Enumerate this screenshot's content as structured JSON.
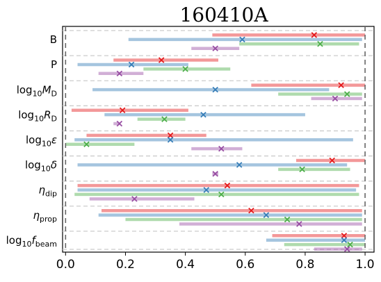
{
  "chart_data": {
    "type": "interval",
    "title": "160410A",
    "xlabel": "",
    "ylabel": "",
    "xlim": [
      -0.01,
      1.03
    ],
    "xticks": [
      "0.0",
      "0.2",
      "0.4",
      "0.6",
      "0.8",
      "1.0"
    ],
    "xtick_values": [
      0,
      0.2,
      0.4,
      0.6,
      0.8,
      1.0
    ],
    "reference_lines": [
      0,
      1
    ],
    "grid": false,
    "row_separators": "dashed light gray",
    "legend": "none",
    "colors": {
      "red": "#e41a1c",
      "blue": "#377eb8",
      "green": "#4daf4a",
      "purple": "#984ea3",
      "frame_dash": "#666666",
      "separator": "#cccccc"
    },
    "parameters": [
      {
        "label": "B",
        "rows": [
          {
            "color": "red",
            "lo": 0.49,
            "hi": 1.0,
            "best": 0.83
          },
          {
            "color": "blue",
            "lo": 0.21,
            "hi": 0.99,
            "best": 0.59
          },
          {
            "color": "green",
            "lo": 0.58,
            "hi": 0.98,
            "best": 0.85
          },
          {
            "color": "purple",
            "lo": 0.42,
            "hi": 0.58,
            "best": 0.5
          }
        ]
      },
      {
        "label": "P",
        "rows": [
          {
            "color": "red",
            "lo": 0.16,
            "hi": 0.51,
            "best": 0.32
          },
          {
            "color": "blue",
            "lo": 0.04,
            "hi": 0.41,
            "best": 0.22
          },
          {
            "color": "green",
            "lo": 0.26,
            "hi": 0.55,
            "best": 0.4
          },
          {
            "color": "purple",
            "lo": 0.11,
            "hi": 0.26,
            "best": 0.18
          }
        ]
      },
      {
        "label": "log10 M_D",
        "label_main": "log",
        "label_sub": "10",
        "label_var": "M",
        "label_var_sub": "D",
        "rows": [
          {
            "color": "red",
            "lo": 0.62,
            "hi": 1.0,
            "best": 0.92
          },
          {
            "color": "blue",
            "lo": 0.09,
            "hi": 0.88,
            "best": 0.5
          },
          {
            "color": "green",
            "lo": 0.71,
            "hi": 0.99,
            "best": 0.94
          },
          {
            "color": "purple",
            "lo": 0.82,
            "hi": 0.99,
            "best": 0.9
          }
        ]
      },
      {
        "label": "log10 R_D",
        "label_main": "log",
        "label_sub": "10",
        "label_var": "R",
        "label_var_sub": "D",
        "rows": [
          {
            "color": "red",
            "lo": 0.02,
            "hi": 0.41,
            "best": 0.19
          },
          {
            "color": "blue",
            "lo": 0.13,
            "hi": 0.8,
            "best": 0.46
          },
          {
            "color": "green",
            "lo": 0.24,
            "hi": 0.4,
            "best": 0.33
          },
          {
            "color": "purple",
            "lo": 0.16,
            "hi": 0.18,
            "best": 0.18
          }
        ]
      },
      {
        "label": "log10 ε",
        "label_main": "log",
        "label_sub": "10",
        "label_var": "ε",
        "label_var_sub": "",
        "rows": [
          {
            "color": "red",
            "lo": 0.07,
            "hi": 0.47,
            "best": 0.35
          },
          {
            "color": "blue",
            "lo": 0.03,
            "hi": 0.96,
            "best": 0.35
          },
          {
            "color": "green",
            "lo": 0.0,
            "hi": 0.23,
            "best": 0.07
          },
          {
            "color": "purple",
            "lo": 0.42,
            "hi": 0.59,
            "best": 0.52
          }
        ]
      },
      {
        "label": "log10 δ",
        "label_main": "log",
        "label_sub": "10",
        "label_var": "δ",
        "label_var_sub": "",
        "rows": [
          {
            "color": "red",
            "lo": 0.77,
            "hi": 1.0,
            "best": 0.89
          },
          {
            "color": "blue",
            "lo": 0.04,
            "hi": 0.94,
            "best": 0.58
          },
          {
            "color": "green",
            "lo": 0.71,
            "hi": 0.95,
            "best": 0.79
          },
          {
            "color": "purple",
            "lo": 0.49,
            "hi": 0.51,
            "best": 0.5
          }
        ]
      },
      {
        "label": "η_dip",
        "label_main": "",
        "label_sub": "",
        "label_var": "η",
        "label_var_sub": "dip",
        "rows": [
          {
            "color": "red",
            "lo": 0.04,
            "hi": 0.98,
            "best": 0.54
          },
          {
            "color": "blue",
            "lo": 0.04,
            "hi": 0.97,
            "best": 0.47
          },
          {
            "color": "green",
            "lo": 0.03,
            "hi": 0.98,
            "best": 0.52
          },
          {
            "color": "purple",
            "lo": 0.08,
            "hi": 0.43,
            "best": 0.23
          }
        ]
      },
      {
        "label": "η_prop",
        "label_main": "",
        "label_sub": "",
        "label_var": "η",
        "label_var_sub": "prop",
        "rows": [
          {
            "color": "red",
            "lo": 0.12,
            "hi": 0.99,
            "best": 0.62
          },
          {
            "color": "blue",
            "lo": 0.11,
            "hi": 0.99,
            "best": 0.67
          },
          {
            "color": "green",
            "lo": 0.2,
            "hi": 0.99,
            "best": 0.74
          },
          {
            "color": "purple",
            "lo": 0.38,
            "hi": 0.99,
            "best": 0.78
          }
        ]
      },
      {
        "label": "log10 f_beam",
        "label_main": "log",
        "label_sub": "10",
        "label_var": "f",
        "label_var_sub": "beam",
        "rows": [
          {
            "color": "red",
            "lo": 0.69,
            "hi": 1.0,
            "best": 0.93
          },
          {
            "color": "blue",
            "lo": 0.67,
            "hi": 1.0,
            "best": 0.93
          },
          {
            "color": "green",
            "lo": 0.73,
            "hi": 1.0,
            "best": 0.95
          },
          {
            "color": "purple",
            "lo": 0.83,
            "hi": 0.99,
            "best": 0.94
          }
        ]
      }
    ]
  }
}
